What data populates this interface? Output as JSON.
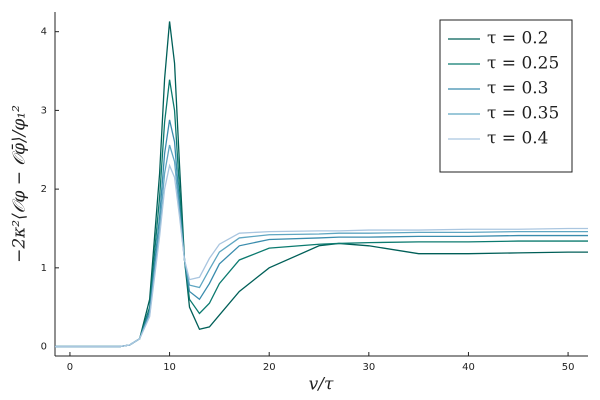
{
  "chart_data": {
    "type": "line",
    "x_label": "v/τ",
    "y_label": "−2κ²⟨𝒪φ − 𝒪φ̄⟩/φ₁²",
    "x": [
      -1.5,
      5,
      6,
      7,
      8,
      9,
      9.5,
      10,
      10.5,
      11,
      11.5,
      12,
      13,
      14,
      15,
      17,
      20,
      25,
      27,
      30,
      35,
      40,
      45,
      50,
      52
    ],
    "series": [
      {
        "name": "τ = 0.2",
        "color": "#005f58",
        "values": [
          0,
          0,
          0.02,
          0.1,
          0.6,
          2.2,
          3.4,
          4.13,
          3.6,
          2.3,
          1.1,
          0.5,
          0.22,
          0.25,
          0.4,
          0.7,
          1.0,
          1.28,
          1.31,
          1.28,
          1.18,
          1.18,
          1.19,
          1.2,
          1.2
        ]
      },
      {
        "name": "τ = 0.25",
        "color": "#0b7a6f",
        "values": [
          0,
          0,
          0.02,
          0.1,
          0.5,
          1.9,
          2.85,
          3.39,
          3.0,
          2.0,
          1.1,
          0.6,
          0.42,
          0.55,
          0.8,
          1.1,
          1.25,
          1.3,
          1.31,
          1.32,
          1.33,
          1.33,
          1.34,
          1.34,
          1.34
        ]
      },
      {
        "name": "τ = 0.3",
        "color": "#3a8cad",
        "values": [
          0,
          0,
          0.02,
          0.1,
          0.45,
          1.65,
          2.45,
          2.88,
          2.6,
          1.8,
          1.1,
          0.7,
          0.6,
          0.8,
          1.05,
          1.28,
          1.36,
          1.38,
          1.39,
          1.39,
          1.4,
          1.4,
          1.41,
          1.41,
          1.41
        ]
      },
      {
        "name": "τ = 0.35",
        "color": "#5fa6c2",
        "values": [
          0,
          0,
          0.02,
          0.1,
          0.4,
          1.5,
          2.2,
          2.56,
          2.35,
          1.7,
          1.1,
          0.78,
          0.75,
          0.98,
          1.2,
          1.38,
          1.42,
          1.43,
          1.44,
          1.44,
          1.45,
          1.45,
          1.46,
          1.46,
          1.46
        ]
      },
      {
        "name": "τ = 0.4",
        "color": "#aac6e0",
        "values": [
          0,
          0,
          0.02,
          0.1,
          0.38,
          1.4,
          2.0,
          2.3,
          2.15,
          1.65,
          1.1,
          0.85,
          0.88,
          1.12,
          1.3,
          1.44,
          1.46,
          1.47,
          1.47,
          1.48,
          1.48,
          1.49,
          1.49,
          1.5,
          1.5
        ]
      }
    ],
    "xlim": [
      -1.5,
      52
    ],
    "xticks": [
      0,
      10,
      20,
      30,
      40,
      50
    ],
    "ylim": [
      -0.12,
      4.25
    ],
    "yticks": [
      0,
      1,
      2,
      3,
      4
    ],
    "grid": false,
    "legend": "upper right"
  }
}
